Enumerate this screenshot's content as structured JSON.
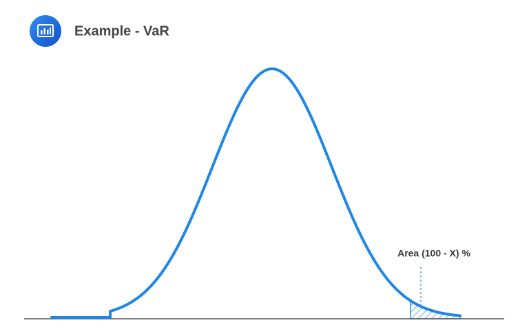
{
  "header": {
    "title": "Example - VaR"
  },
  "annotation": {
    "label": "Area (100 - X) %"
  }
}
